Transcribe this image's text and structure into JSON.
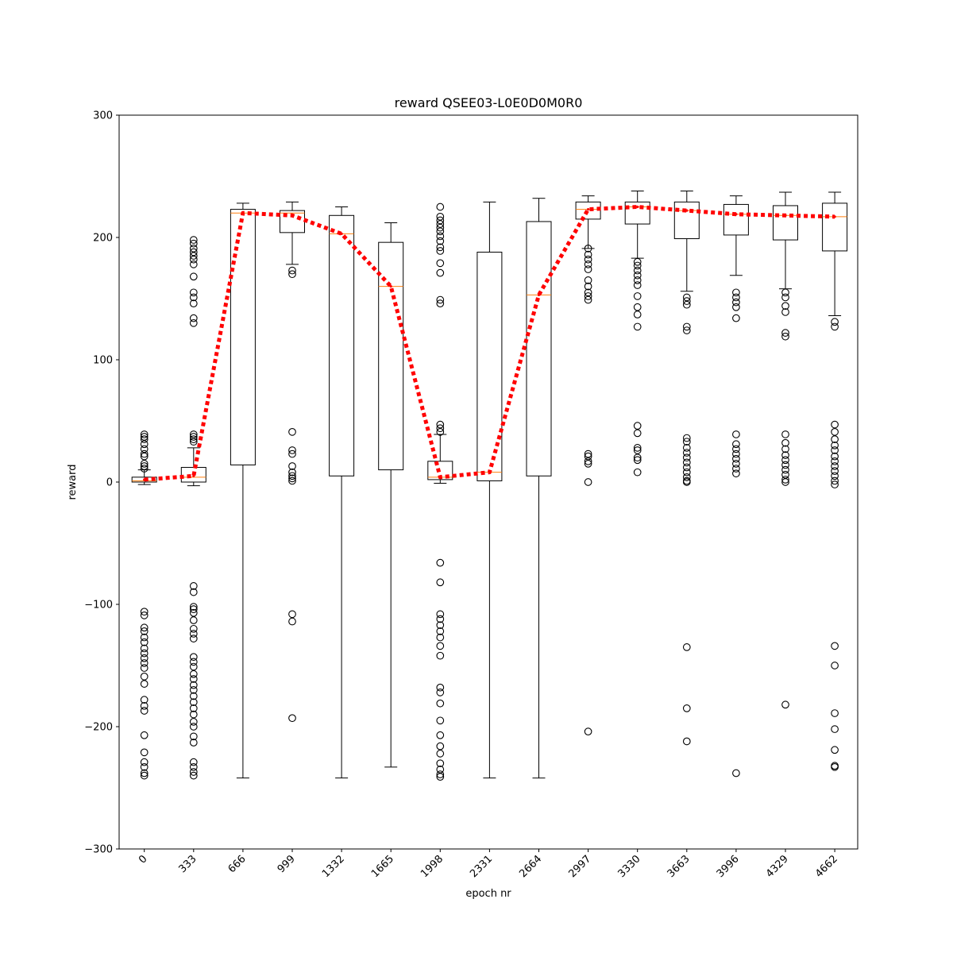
{
  "chart_data": {
    "type": "box",
    "title": "reward QSEE03-L0E0D0M0R0",
    "xlabel": "epoch nr",
    "ylabel": "reward",
    "ylim": [
      -300,
      300
    ],
    "yticks": [
      "−300",
      "−200",
      "−100",
      "0",
      "100",
      "200",
      "300"
    ],
    "categories": [
      "0",
      "333",
      "666",
      "999",
      "1332",
      "1665",
      "1998",
      "2331",
      "2664",
      "2997",
      "3330",
      "3663",
      "3996",
      "4329",
      "4662"
    ],
    "boxes": [
      {
        "whisker_low": -2,
        "q1": 0,
        "median": 1,
        "q3": 4,
        "whisker_high": 10,
        "outliers": [
          39,
          37,
          35,
          31,
          27,
          23,
          21,
          15,
          13,
          11,
          -106,
          -109,
          -119,
          -122,
          -127,
          -131,
          -136,
          -140,
          -144,
          -148,
          -152,
          -159,
          -165,
          -178,
          -183,
          -187,
          -207,
          -221,
          -229,
          -233,
          -238,
          -240
        ]
      },
      {
        "whisker_low": -3,
        "q1": 0,
        "median": 4,
        "q3": 12,
        "whisker_high": 28,
        "outliers": [
          198,
          195,
          191,
          188,
          185,
          182,
          178,
          168,
          155,
          151,
          146,
          134,
          130,
          39,
          37,
          35,
          33,
          -85,
          -90,
          -102,
          -104,
          -107,
          -113,
          -120,
          -124,
          -128,
          -143,
          -147,
          -151,
          -157,
          -161,
          -166,
          -170,
          -175,
          -180,
          -185,
          -190,
          -196,
          -200,
          -208,
          -213,
          -229,
          -233,
          -237,
          -240
        ]
      },
      {
        "whisker_low": -242,
        "q1": 14,
        "median": 220,
        "q3": 223,
        "whisker_high": 228,
        "outliers": []
      },
      {
        "whisker_low": 178,
        "q1": 204,
        "median": 220,
        "q3": 222,
        "whisker_high": 229,
        "outliers": [
          173,
          170,
          41,
          26,
          23,
          13,
          8,
          5,
          3,
          1,
          -108,
          -114,
          -193
        ]
      },
      {
        "whisker_low": -242,
        "q1": 5,
        "median": 203,
        "q3": 218,
        "whisker_high": 225,
        "outliers": []
      },
      {
        "whisker_low": -233,
        "q1": 10,
        "median": 160,
        "q3": 196,
        "whisker_high": 212,
        "outliers": []
      },
      {
        "whisker_low": -1,
        "q1": 2,
        "median": 4,
        "q3": 17,
        "whisker_high": 39,
        "outliers": [
          225,
          217,
          214,
          211,
          208,
          205,
          201,
          197,
          192,
          189,
          179,
          171,
          149,
          146,
          47,
          44,
          41,
          -66,
          -82,
          -108,
          -112,
          -117,
          -122,
          -127,
          -134,
          -142,
          -168,
          -172,
          -181,
          -195,
          -207,
          -216,
          -222,
          -230,
          -235,
          -239,
          -241
        ]
      },
      {
        "whisker_low": -242,
        "q1": 1,
        "median": 8,
        "q3": 188,
        "whisker_high": 229,
        "outliers": []
      },
      {
        "whisker_low": -242,
        "q1": 5,
        "median": 153,
        "q3": 213,
        "whisker_high": 232,
        "outliers": []
      },
      {
        "whisker_low": 191,
        "q1": 215,
        "median": 223,
        "q3": 229,
        "whisker_high": 234,
        "outliers": [
          191,
          186,
          182,
          178,
          174,
          165,
          160,
          155,
          152,
          149,
          23,
          21,
          17,
          15,
          0,
          -204
        ]
      },
      {
        "whisker_low": 183,
        "q1": 211,
        "median": 225,
        "q3": 229,
        "whisker_high": 238,
        "outliers": [
          180,
          177,
          173,
          169,
          165,
          161,
          152,
          143,
          137,
          127,
          46,
          40,
          28,
          26,
          20,
          18,
          8
        ]
      },
      {
        "whisker_low": 156,
        "q1": 199,
        "median": 222,
        "q3": 229,
        "whisker_high": 238,
        "outliers": [
          151,
          148,
          145,
          127,
          124,
          36,
          33,
          28,
          24,
          20,
          16,
          12,
          8,
          4,
          1,
          0,
          -135,
          -185,
          -212
        ]
      },
      {
        "whisker_low": 169,
        "q1": 202,
        "median": 219,
        "q3": 227,
        "whisker_high": 234,
        "outliers": [
          155,
          151,
          147,
          143,
          134,
          39,
          31,
          27,
          23,
          19,
          15,
          11,
          7,
          -238
        ]
      },
      {
        "whisker_low": 158,
        "q1": 198,
        "median": 218,
        "q3": 226,
        "whisker_high": 237,
        "outliers": [
          155,
          151,
          144,
          139,
          122,
          119,
          39,
          32,
          27,
          22,
          18,
          14,
          10,
          6,
          2,
          0,
          -182
        ]
      },
      {
        "whisker_low": 136,
        "q1": 189,
        "median": 217,
        "q3": 228,
        "whisker_high": 237,
        "outliers": [
          131,
          127,
          47,
          41,
          35,
          30,
          26,
          21,
          17,
          13,
          9,
          5,
          1,
          -2,
          -134,
          -150,
          -189,
          -202,
          -219,
          -232,
          -233
        ]
      }
    ],
    "trend_line": {
      "style": "dotted",
      "color": "#ff0000",
      "values": [
        2,
        5,
        220,
        218,
        203,
        160,
        4,
        8,
        153,
        223,
        225,
        222,
        219,
        218,
        217
      ]
    },
    "colors": {
      "median": "#ff7f0e",
      "trend": "#ff0000",
      "box_stroke": "#000000"
    }
  }
}
